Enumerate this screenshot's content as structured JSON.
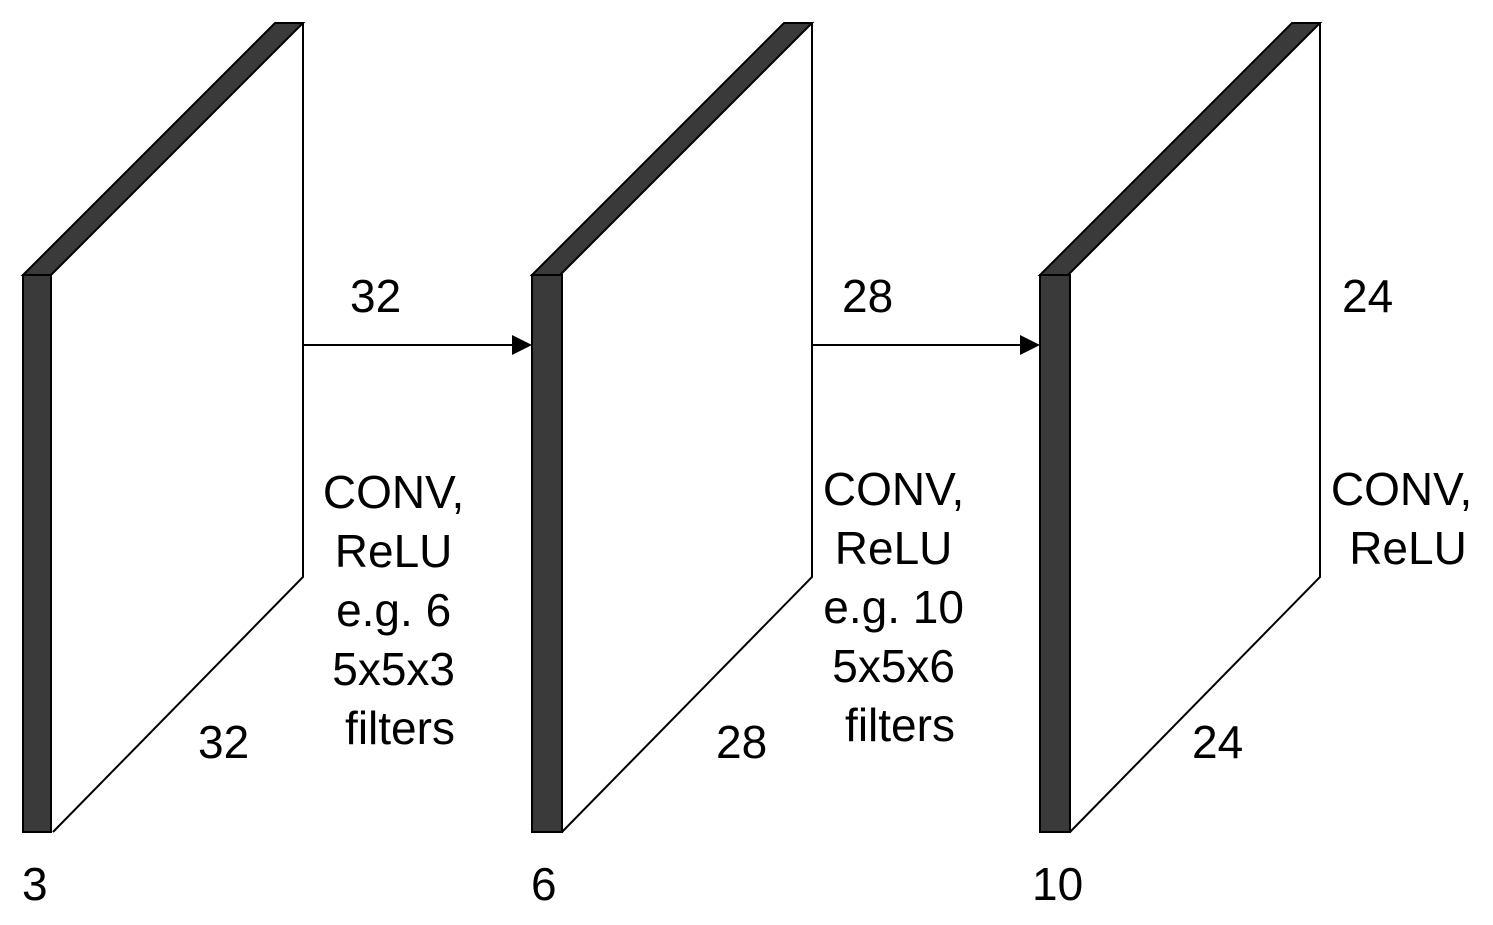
{
  "colors": {
    "depth_face": "#3a3a3a",
    "stroke": "#000000",
    "background": "#ffffff"
  },
  "volumes": [
    {
      "height": "32",
      "width": "32",
      "depth": "3"
    },
    {
      "height": "28",
      "width": "28",
      "depth": "6"
    },
    {
      "height": "24",
      "width": "24",
      "depth": "10"
    }
  ],
  "operations": [
    {
      "lines": [
        "CONV,",
        "ReLU",
        "e.g. 6",
        "5x5x3",
        "filters"
      ]
    },
    {
      "lines": [
        "CONV,",
        "ReLU",
        "e.g. 10",
        "5x5x6",
        "filters"
      ]
    },
    {
      "lines": [
        "CONV,",
        "ReLU"
      ]
    }
  ]
}
